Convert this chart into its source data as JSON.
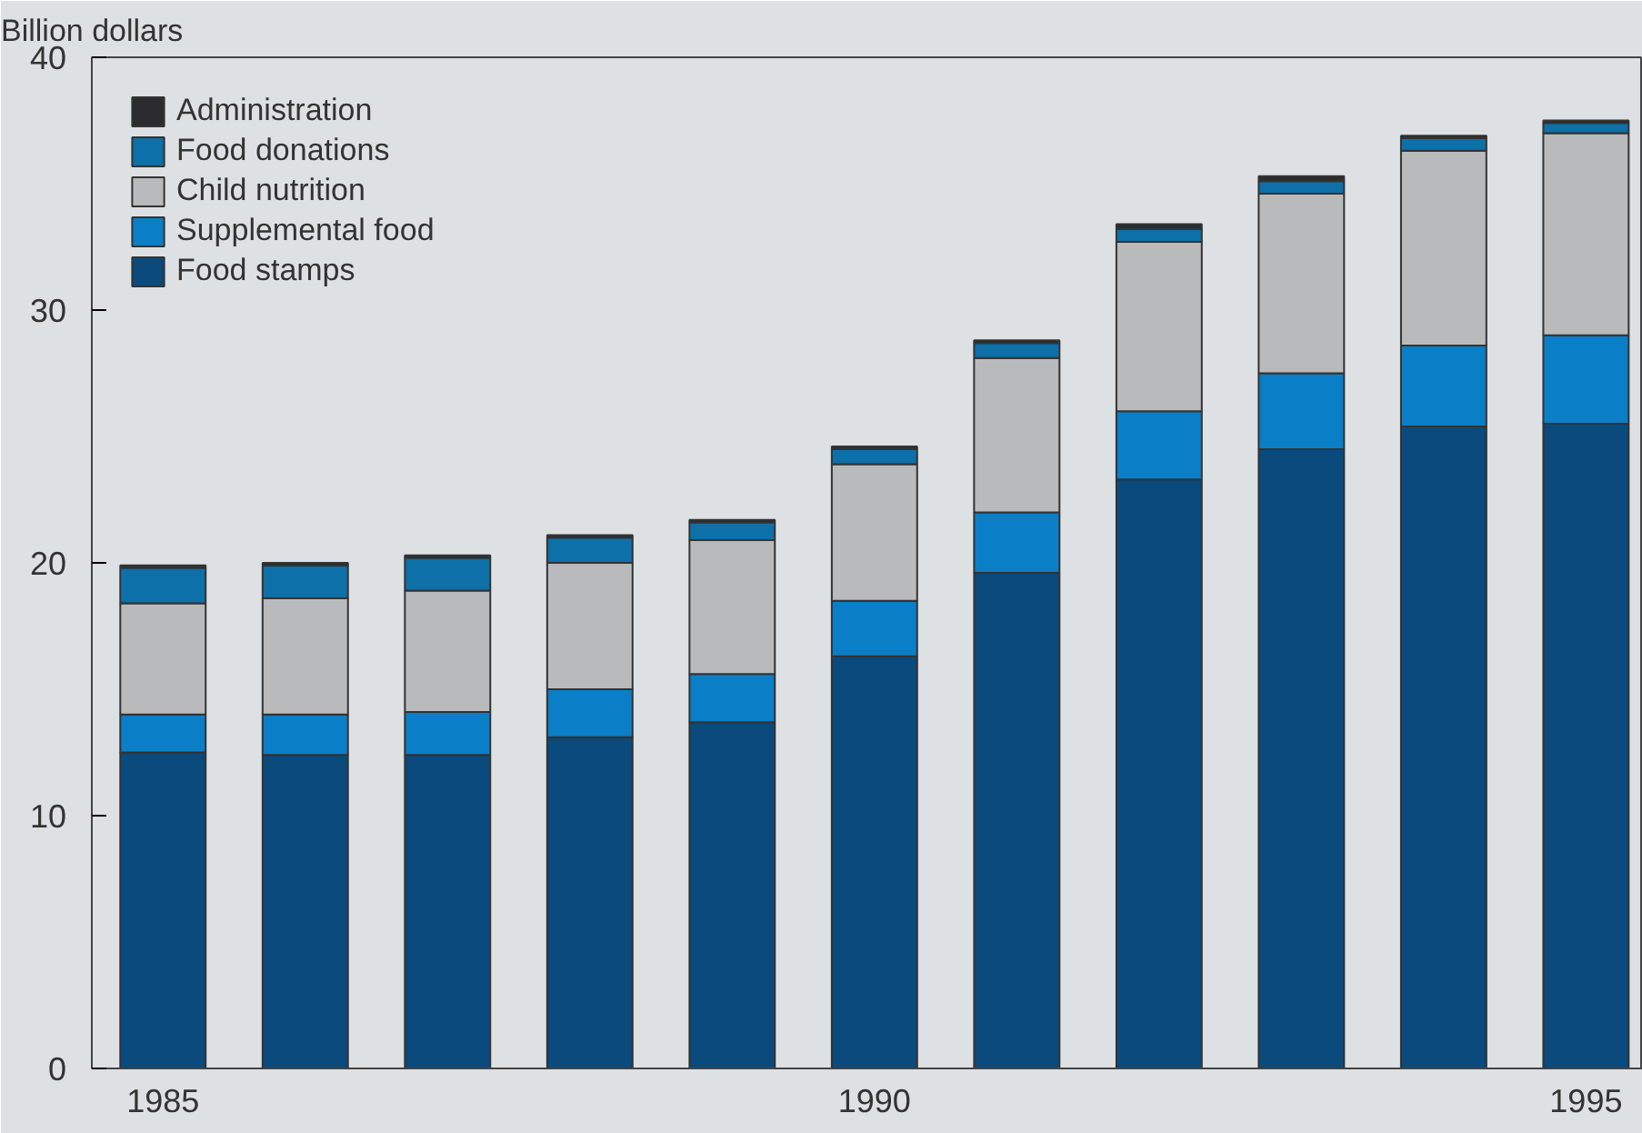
{
  "chart_data": {
    "type": "bar",
    "stacked": true,
    "ylabel": "Billion dollars",
    "x": [
      1985,
      1986,
      1987,
      1988,
      1989,
      1990,
      1991,
      1992,
      1993,
      1994,
      1995
    ],
    "xlim": [
      1984.5,
      1995.4
    ],
    "xticks": [
      1985,
      1990,
      1995
    ],
    "ylim": [
      0,
      40
    ],
    "yticks": [
      0,
      10,
      20,
      30,
      40
    ],
    "legend": "top left",
    "grid": false,
    "series": [
      {
        "name": "Food stamps",
        "color": "#0a4a7c",
        "values": [
          12.5,
          12.4,
          12.4,
          13.1,
          13.7,
          16.3,
          19.6,
          23.3,
          24.5,
          25.4,
          25.5
        ]
      },
      {
        "name": "Supplemental food",
        "color": "#0a7fc8",
        "values": [
          1.5,
          1.6,
          1.7,
          1.9,
          1.9,
          2.2,
          2.4,
          2.7,
          3.0,
          3.2,
          3.5
        ]
      },
      {
        "name": "Child nutrition",
        "color": "#b9babc",
        "values": [
          4.4,
          4.6,
          4.8,
          5.0,
          5.3,
          5.4,
          6.1,
          6.7,
          7.1,
          7.7,
          8.0
        ]
      },
      {
        "name": "Food donations",
        "color": "#0d70a8",
        "values": [
          1.4,
          1.3,
          1.3,
          1.0,
          0.7,
          0.6,
          0.6,
          0.5,
          0.5,
          0.5,
          0.4
        ]
      },
      {
        "name": "Administration",
        "color": "#2c2c2e",
        "values": [
          0.1,
          0.1,
          0.1,
          0.1,
          0.1,
          0.1,
          0.1,
          0.2,
          0.2,
          0.1,
          0.1
        ]
      }
    ]
  }
}
